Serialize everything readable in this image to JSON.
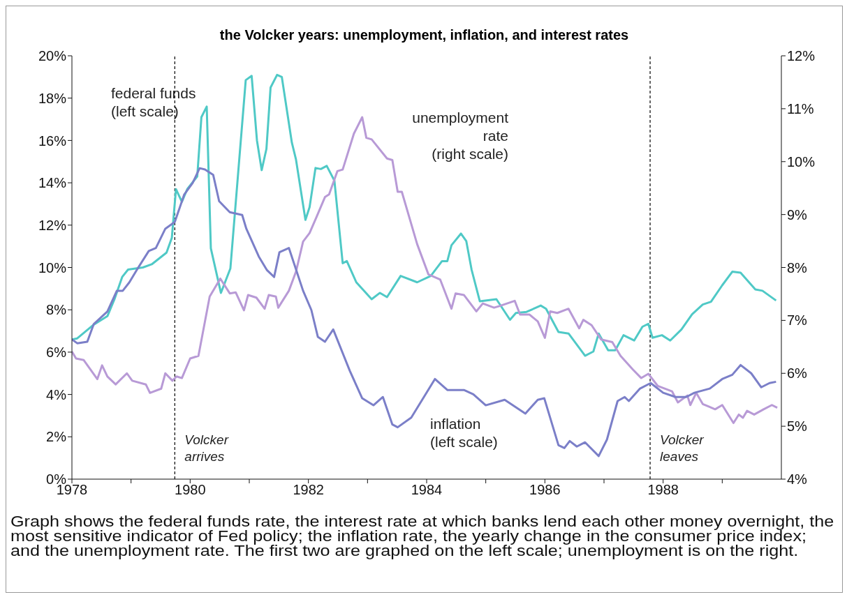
{
  "chart_data": {
    "type": "line",
    "title": "the Volcker years: unemployment, inflation, and interest rates",
    "xlim": [
      1978,
      1990
    ],
    "xticks": [
      1978,
      {
        "value": 1979,
        "label": null
      },
      1980,
      {
        "value": 1981,
        "label": null
      },
      1982,
      {
        "value": 1983,
        "label": null
      },
      1984,
      {
        "value": 1985,
        "label": null
      },
      1986,
      {
        "value": 1987,
        "label": null
      },
      1988,
      {
        "value": 1989,
        "label": null
      }
    ],
    "ylim": [
      0,
      20
    ],
    "yticks": [
      {
        "value": 0,
        "label": "0%"
      },
      {
        "value": 2,
        "label": "2%"
      },
      {
        "value": 4,
        "label": "4%"
      },
      {
        "value": 6,
        "label": "6%"
      },
      {
        "value": 8,
        "label": "8%"
      },
      {
        "value": 10,
        "label": "10%"
      },
      {
        "value": 12,
        "label": "12%"
      },
      {
        "value": 14,
        "label": "14%"
      },
      {
        "value": 16,
        "label": "16%"
      },
      {
        "value": 18,
        "label": "18%"
      },
      {
        "value": 20,
        "label": "20%"
      }
    ],
    "y2lim": [
      4,
      12
    ],
    "y2ticks": [
      {
        "value": 4,
        "label": "4%"
      },
      {
        "value": 5,
        "label": "5%"
      },
      {
        "value": 6,
        "label": "6%"
      },
      {
        "value": 7,
        "label": "7%"
      },
      {
        "value": 8,
        "label": "8%"
      },
      {
        "value": 9,
        "label": "9%"
      },
      {
        "value": 10,
        "label": "10%"
      },
      {
        "value": 11,
        "label": "11%"
      },
      {
        "value": 12,
        "label": "12%"
      }
    ],
    "grid": false,
    "legend": false,
    "marker": "none",
    "series": [
      {
        "name": "federal funds\n(left scale)",
        "color": "#4fc9c6",
        "x": [
          1978.0,
          1978.09,
          1978.37,
          1978.6,
          1978.72,
          1978.85,
          1978.95,
          1979.2,
          1979.35,
          1979.6,
          1979.69,
          1979.76,
          1979.86,
          1979.95,
          1980.12,
          1980.19,
          1980.28,
          1980.35,
          1980.52,
          1980.68,
          1980.94,
          1981.04,
          1981.13,
          1981.21,
          1981.29,
          1981.36,
          1981.47,
          1981.55,
          1981.72,
          1981.79,
          1981.95,
          1982.02,
          1982.12,
          1982.21,
          1982.31,
          1982.44,
          1982.58,
          1982.65,
          1982.81,
          1983.07,
          1983.21,
          1983.33,
          1983.56,
          1983.84,
          1984.07,
          1984.26,
          1984.35,
          1984.42,
          1984.58,
          1984.67,
          1984.76,
          1984.9,
          1985.18,
          1985.41,
          1985.51,
          1985.69,
          1985.93,
          1986.02,
          1986.23,
          1986.4,
          1986.68,
          1986.82,
          1986.91,
          1987.07,
          1987.19,
          1987.33,
          1987.51,
          1987.65,
          1987.75,
          1987.82,
          1987.98,
          1988.12,
          1988.31,
          1988.49,
          1988.67,
          1988.81,
          1989.0,
          1989.17,
          1989.31,
          1989.56,
          1989.68,
          1989.91
        ],
        "values": [
          6.6,
          6.65,
          7.3,
          7.7,
          8.5,
          9.55,
          9.9,
          10.0,
          10.15,
          10.7,
          11.4,
          13.7,
          13.1,
          13.7,
          14.3,
          17.1,
          17.6,
          10.9,
          8.8,
          9.95,
          18.85,
          19.05,
          16.0,
          14.6,
          15.6,
          18.5,
          19.1,
          19.0,
          15.9,
          15.1,
          12.25,
          12.85,
          14.7,
          14.65,
          14.8,
          14.1,
          10.2,
          10.3,
          9.3,
          8.5,
          8.8,
          8.6,
          9.6,
          9.3,
          9.6,
          10.3,
          10.3,
          11.05,
          11.6,
          11.25,
          9.9,
          8.4,
          8.5,
          7.53,
          7.85,
          7.9,
          8.2,
          8.05,
          6.95,
          6.88,
          5.83,
          6.03,
          6.88,
          6.09,
          6.09,
          6.8,
          6.55,
          7.2,
          7.34,
          6.68,
          6.8,
          6.55,
          7.07,
          7.79,
          8.25,
          8.38,
          9.16,
          9.8,
          9.75,
          8.96,
          8.9,
          8.44
        ]
      },
      {
        "name": "unemployment\nrate\n(right scale)",
        "color": "#b89ad6",
        "axis": "y2",
        "x": [
          1978.0,
          1978.07,
          1978.2,
          1978.43,
          1978.51,
          1978.6,
          1978.74,
          1978.93,
          1979.02,
          1979.25,
          1979.32,
          1979.51,
          1979.58,
          1979.7,
          1979.77,
          1979.86,
          1980.0,
          1980.14,
          1980.33,
          1980.51,
          1980.67,
          1980.77,
          1980.91,
          1980.98,
          1981.12,
          1981.26,
          1981.33,
          1981.45,
          1981.49,
          1981.67,
          1981.79,
          1981.91,
          1982.02,
          1982.14,
          1982.28,
          1982.35,
          1982.49,
          1982.58,
          1982.77,
          1982.91,
          1982.98,
          1983.07,
          1983.33,
          1983.42,
          1983.51,
          1983.58,
          1983.84,
          1984.03,
          1984.23,
          1984.42,
          1984.49,
          1984.63,
          1984.72,
          1984.84,
          1984.95,
          1985.14,
          1985.23,
          1985.49,
          1985.58,
          1985.74,
          1985.88,
          1986.0,
          1986.09,
          1986.21,
          1986.4,
          1986.58,
          1986.65,
          1986.79,
          1986.95,
          1987.14,
          1987.28,
          1987.49,
          1987.63,
          1987.75,
          1987.91,
          1988.15,
          1988.25,
          1988.41,
          1988.46,
          1988.56,
          1988.67,
          1988.88,
          1989.0,
          1989.19,
          1989.28,
          1989.35,
          1989.42,
          1989.54,
          1989.7,
          1989.84,
          1989.93
        ],
        "values": [
          6.41,
          6.28,
          6.25,
          5.89,
          6.15,
          5.94,
          5.79,
          6.0,
          5.86,
          5.79,
          5.63,
          5.71,
          6.0,
          5.86,
          5.94,
          5.91,
          6.28,
          6.33,
          7.45,
          7.79,
          7.51,
          7.53,
          7.19,
          7.48,
          7.43,
          7.22,
          7.48,
          7.45,
          7.24,
          7.56,
          7.92,
          8.49,
          8.65,
          8.96,
          9.33,
          9.38,
          9.82,
          9.85,
          10.53,
          10.84,
          10.45,
          10.42,
          10.06,
          10.03,
          9.43,
          9.43,
          8.44,
          7.87,
          7.77,
          7.22,
          7.51,
          7.48,
          7.35,
          7.17,
          7.32,
          7.24,
          7.27,
          7.37,
          7.11,
          7.11,
          6.98,
          6.67,
          7.17,
          7.14,
          7.22,
          6.85,
          7.01,
          6.91,
          6.64,
          6.59,
          6.33,
          6.07,
          5.91,
          5.99,
          5.76,
          5.66,
          5.45,
          5.58,
          5.4,
          5.63,
          5.42,
          5.32,
          5.4,
          5.06,
          5.22,
          5.16,
          5.29,
          5.22,
          5.32,
          5.4,
          5.35
        ]
      },
      {
        "name": "inflation\n(left scale)",
        "color": "#7b7fc8",
        "x": [
          1978.0,
          1978.09,
          1978.26,
          1978.37,
          1978.6,
          1978.76,
          1978.86,
          1978.97,
          1979.11,
          1979.3,
          1979.42,
          1979.58,
          1979.74,
          1979.9,
          1980.04,
          1980.16,
          1980.25,
          1980.39,
          1980.49,
          1980.67,
          1980.88,
          1980.95,
          1981.16,
          1981.3,
          1981.42,
          1981.51,
          1981.67,
          1981.91,
          1982.05,
          1982.16,
          1982.28,
          1982.42,
          1982.7,
          1982.91,
          1983.1,
          1983.26,
          1983.42,
          1983.51,
          1983.74,
          1984.14,
          1984.35,
          1984.63,
          1984.79,
          1985.0,
          1985.32,
          1985.67,
          1985.88,
          1985.99,
          1986.23,
          1986.33,
          1986.42,
          1986.54,
          1986.68,
          1986.91,
          1987.05,
          1987.23,
          1987.35,
          1987.42,
          1987.61,
          1987.79,
          1988.0,
          1988.21,
          1988.39,
          1988.53,
          1988.79,
          1989.0,
          1989.17,
          1989.31,
          1989.49,
          1989.66,
          1989.8,
          1989.91
        ],
        "values": [
          6.6,
          6.42,
          6.49,
          7.33,
          7.92,
          8.9,
          8.9,
          9.29,
          9.94,
          10.78,
          10.92,
          11.83,
          12.15,
          13.45,
          13.98,
          14.69,
          14.63,
          14.37,
          13.13,
          12.61,
          12.48,
          11.83,
          10.52,
          9.87,
          9.55,
          10.72,
          10.92,
          8.9,
          7.99,
          6.72,
          6.49,
          7.07,
          5.12,
          3.82,
          3.49,
          3.88,
          2.58,
          2.45,
          2.91,
          4.73,
          4.21,
          4.21,
          4.01,
          3.49,
          3.75,
          3.1,
          3.75,
          3.82,
          1.6,
          1.47,
          1.8,
          1.54,
          1.74,
          1.09,
          1.87,
          3.69,
          3.88,
          3.69,
          4.28,
          4.54,
          4.08,
          3.88,
          3.88,
          4.08,
          4.28,
          4.73,
          4.93,
          5.39,
          5.0,
          4.34,
          4.54,
          4.6
        ]
      }
    ],
    "ref_lines": [
      {
        "axis": "x",
        "value": 1979.74,
        "label": "Volcker\narrives",
        "color": "#000000",
        "line_style": "dashed"
      },
      {
        "axis": "x",
        "value": 1987.78,
        "label": "Volcker\nleaves",
        "color": "#000000",
        "line_style": "dashed"
      }
    ],
    "annotations": [
      "Graph shows the federal funds rate, the interest rate at which banks lend each other money overnight, the most sensitive indicator of Fed policy; the inflation rate, the yearly change in the consumer price index; and the unemployment rate. The first two are graphed on the left scale; unemployment is on the right."
    ]
  }
}
